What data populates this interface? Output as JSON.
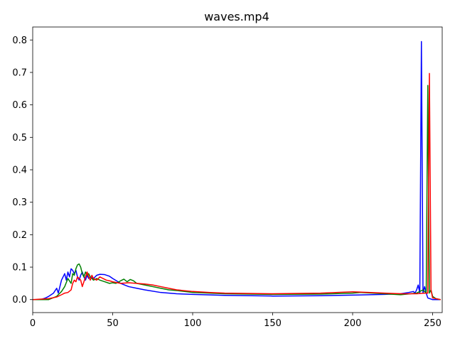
{
  "chart_data": {
    "type": "line",
    "title": "waves.mp4",
    "xlabel": "",
    "ylabel": "",
    "xlim": [
      0,
      256
    ],
    "ylim": [
      -0.04,
      0.84
    ],
    "xticks": [
      0,
      50,
      100,
      150,
      200,
      250
    ],
    "yticks": [
      0.0,
      0.1,
      0.2,
      0.3,
      0.4,
      0.5,
      0.6,
      0.7,
      0.8
    ],
    "grid": false,
    "series": [
      {
        "color": "#0000ff",
        "points": [
          [
            0,
            0
          ],
          [
            5,
            0
          ],
          [
            8,
            0.005
          ],
          [
            10,
            0.01
          ],
          [
            13,
            0.02
          ],
          [
            15,
            0.035
          ],
          [
            16,
            0.02
          ],
          [
            18,
            0.06
          ],
          [
            20,
            0.08
          ],
          [
            21,
            0.06
          ],
          [
            22,
            0.085
          ],
          [
            23,
            0.07
          ],
          [
            24,
            0.095
          ],
          [
            25,
            0.09
          ],
          [
            26,
            0.08
          ],
          [
            27,
            0.09
          ],
          [
            28,
            0.07
          ],
          [
            29,
            0.06
          ],
          [
            30,
            0.075
          ],
          [
            31,
            0.085
          ],
          [
            32,
            0.07
          ],
          [
            33,
            0.06
          ],
          [
            34,
            0.075
          ],
          [
            35,
            0.065
          ],
          [
            36,
            0.07
          ],
          [
            38,
            0.065
          ],
          [
            40,
            0.075
          ],
          [
            42,
            0.078
          ],
          [
            45,
            0.077
          ],
          [
            48,
            0.072
          ],
          [
            50,
            0.065
          ],
          [
            55,
            0.05
          ],
          [
            60,
            0.04
          ],
          [
            65,
            0.035
          ],
          [
            70,
            0.03
          ],
          [
            80,
            0.022
          ],
          [
            90,
            0.018
          ],
          [
            100,
            0.016
          ],
          [
            120,
            0.013
          ],
          [
            150,
            0.011
          ],
          [
            180,
            0.012
          ],
          [
            200,
            0.014
          ],
          [
            220,
            0.016
          ],
          [
            230,
            0.018
          ],
          [
            235,
            0.022
          ],
          [
            238,
            0.025
          ],
          [
            239,
            0.02
          ],
          [
            240,
            0.03
          ],
          [
            241,
            0.045
          ],
          [
            242,
            0.02
          ],
          [
            243,
            0.795
          ],
          [
            244,
            0.02
          ],
          [
            245,
            0.04
          ],
          [
            246,
            0.02
          ],
          [
            247,
            0.005
          ],
          [
            250,
            0
          ],
          [
            255,
            0
          ]
        ]
      },
      {
        "color": "#008000",
        "points": [
          [
            0,
            0
          ],
          [
            10,
            0
          ],
          [
            15,
            0.01
          ],
          [
            18,
            0.025
          ],
          [
            20,
            0.04
          ],
          [
            22,
            0.065
          ],
          [
            24,
            0.05
          ],
          [
            25,
            0.08
          ],
          [
            26,
            0.075
          ],
          [
            27,
            0.095
          ],
          [
            28,
            0.107
          ],
          [
            29,
            0.11
          ],
          [
            30,
            0.1
          ],
          [
            31,
            0.08
          ],
          [
            32,
            0.07
          ],
          [
            33,
            0.085
          ],
          [
            34,
            0.075
          ],
          [
            35,
            0.08
          ],
          [
            36,
            0.07
          ],
          [
            38,
            0.06
          ],
          [
            40,
            0.065
          ],
          [
            42,
            0.06
          ],
          [
            45,
            0.055
          ],
          [
            48,
            0.05
          ],
          [
            50,
            0.052
          ],
          [
            52,
            0.05
          ],
          [
            55,
            0.058
          ],
          [
            57,
            0.063
          ],
          [
            59,
            0.055
          ],
          [
            61,
            0.062
          ],
          [
            63,
            0.058
          ],
          [
            65,
            0.05
          ],
          [
            70,
            0.045
          ],
          [
            75,
            0.04
          ],
          [
            80,
            0.035
          ],
          [
            85,
            0.03
          ],
          [
            90,
            0.028
          ],
          [
            100,
            0.022
          ],
          [
            120,
            0.018
          ],
          [
            150,
            0.016
          ],
          [
            180,
            0.017
          ],
          [
            200,
            0.02
          ],
          [
            205,
            0.022
          ],
          [
            220,
            0.018
          ],
          [
            230,
            0.015
          ],
          [
            240,
            0.02
          ],
          [
            244,
            0.03
          ],
          [
            246,
            0.02
          ],
          [
            247,
            0.66
          ],
          [
            248,
            0.02
          ],
          [
            249,
            0.03
          ],
          [
            250,
            0.01
          ],
          [
            252,
            0.003
          ],
          [
            255,
            0
          ]
        ]
      },
      {
        "color": "#ff0000",
        "points": [
          [
            0,
            0
          ],
          [
            10,
            0.003
          ],
          [
            15,
            0.008
          ],
          [
            18,
            0.015
          ],
          [
            20,
            0.02
          ],
          [
            22,
            0.022
          ],
          [
            24,
            0.03
          ],
          [
            25,
            0.05
          ],
          [
            26,
            0.06
          ],
          [
            27,
            0.055
          ],
          [
            28,
            0.07
          ],
          [
            29,
            0.065
          ],
          [
            30,
            0.06
          ],
          [
            31,
            0.04
          ],
          [
            32,
            0.055
          ],
          [
            33,
            0.07
          ],
          [
            34,
            0.085
          ],
          [
            35,
            0.07
          ],
          [
            36,
            0.06
          ],
          [
            37,
            0.075
          ],
          [
            38,
            0.065
          ],
          [
            40,
            0.06
          ],
          [
            42,
            0.07
          ],
          [
            44,
            0.065
          ],
          [
            46,
            0.06
          ],
          [
            48,
            0.058
          ],
          [
            50,
            0.055
          ],
          [
            55,
            0.05
          ],
          [
            60,
            0.052
          ],
          [
            65,
            0.05
          ],
          [
            70,
            0.048
          ],
          [
            75,
            0.045
          ],
          [
            80,
            0.04
          ],
          [
            85,
            0.035
          ],
          [
            90,
            0.03
          ],
          [
            100,
            0.025
          ],
          [
            110,
            0.022
          ],
          [
            120,
            0.02
          ],
          [
            150,
            0.018
          ],
          [
            180,
            0.02
          ],
          [
            200,
            0.024
          ],
          [
            210,
            0.022
          ],
          [
            220,
            0.02
          ],
          [
            230,
            0.018
          ],
          [
            240,
            0.018
          ],
          [
            245,
            0.02
          ],
          [
            247,
            0.02
          ],
          [
            248,
            0.697
          ],
          [
            249,
            0.03
          ],
          [
            250,
            0.005
          ],
          [
            253,
            0.002
          ],
          [
            255,
            0
          ]
        ]
      }
    ]
  }
}
